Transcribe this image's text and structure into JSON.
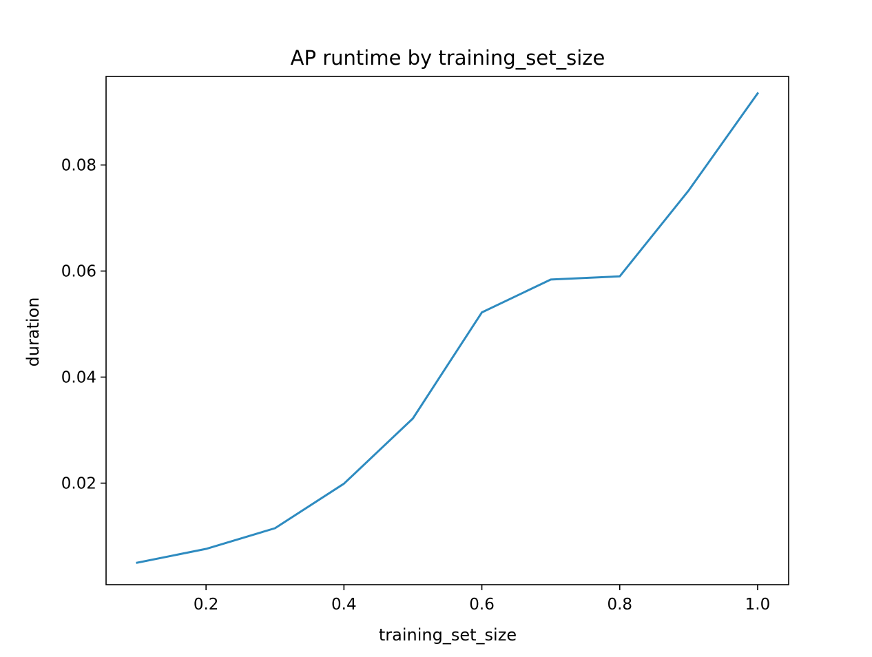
{
  "chart_data": {
    "type": "line",
    "title": "AP runtime by training_set_size",
    "xlabel": "training_set_size",
    "ylabel": "duration",
    "xlim": [
      0.055,
      1.045
    ],
    "ylim": [
      0.00085,
      0.0967
    ],
    "xticks": [
      0.2,
      0.4,
      0.6,
      0.8,
      1.0
    ],
    "xtick_labels": [
      "0.2",
      "0.4",
      "0.6",
      "0.8",
      "1.0"
    ],
    "yticks": [
      0.02,
      0.04,
      0.06,
      0.08
    ],
    "ytick_labels": [
      "0.02",
      "0.04",
      "0.06",
      "0.08"
    ],
    "grid": false,
    "series": [
      {
        "color": "#2e8bc0",
        "x": [
          0.1,
          0.2,
          0.3,
          0.4,
          0.5,
          0.6,
          0.7,
          0.8,
          0.9,
          1.0
        ],
        "y": [
          0.005,
          0.0076,
          0.0115,
          0.0199,
          0.0322,
          0.0522,
          0.0584,
          0.059,
          0.0752,
          0.0935
        ]
      }
    ]
  }
}
